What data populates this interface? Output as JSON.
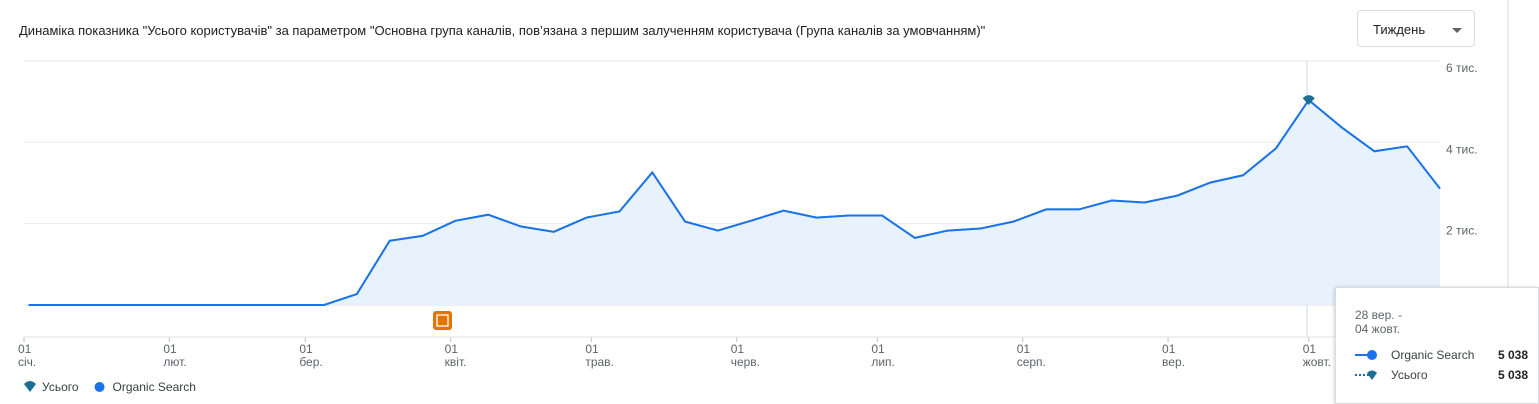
{
  "header": {
    "title": "Динаміка показника \"Усього користувачів\" за параметром \"Основна група каналів, пов’язана з першим залученням користувача (Група каналів за умовчанням)\"",
    "period_selector": "Тиждень"
  },
  "chart_data": {
    "type": "line",
    "x": [
      1,
      8,
      15,
      22,
      29,
      36,
      43,
      50,
      57,
      64,
      71,
      78,
      85,
      92,
      99,
      106,
      113,
      120,
      127,
      134,
      141,
      148,
      155,
      162,
      169,
      176,
      183,
      190,
      197,
      204,
      211,
      218,
      225,
      232,
      239,
      246,
      253,
      260,
      267,
      274,
      281,
      288,
      295,
      302
    ],
    "series": [
      {
        "name": "Усього",
        "color": "#1b6f95",
        "values": [
          0,
          0,
          0,
          0,
          0,
          0,
          0,
          0,
          0,
          0,
          270,
          1580,
          1700,
          2070,
          2220,
          1930,
          1800,
          2150,
          2300,
          3260,
          2050,
          1830,
          2070,
          2320,
          2150,
          2200,
          2200,
          1650,
          1830,
          1880,
          2050,
          2350,
          2350,
          2570,
          2520,
          2690,
          3010,
          3190,
          3850,
          5038,
          4370,
          3780,
          3900,
          2860
        ]
      },
      {
        "name": "Organic Search",
        "color": "#1a73e8",
        "values": [
          0,
          0,
          0,
          0,
          0,
          0,
          0,
          0,
          0,
          0,
          270,
          1580,
          1700,
          2070,
          2220,
          1930,
          1800,
          2150,
          2300,
          3260,
          2050,
          1830,
          2070,
          2320,
          2150,
          2200,
          2200,
          1650,
          1830,
          1880,
          2050,
          2350,
          2350,
          2570,
          2520,
          2690,
          3010,
          3190,
          3850,
          5038,
          4370,
          3780,
          3900,
          2860
        ]
      }
    ],
    "xlim": [
      0,
      302
    ],
    "xticks": [
      {
        "value": 0,
        "label": "01 січ."
      },
      {
        "value": 31,
        "label": "01 лют."
      },
      {
        "value": 60,
        "label": "01 бер."
      },
      {
        "value": 91,
        "label": "01 квіт."
      },
      {
        "value": 121,
        "label": "01 трав."
      },
      {
        "value": 152,
        "label": "01 черв."
      },
      {
        "value": 182,
        "label": "01 лип."
      },
      {
        "value": 213,
        "label": "01 серп."
      },
      {
        "value": 244,
        "label": "01 вер."
      },
      {
        "value": 274,
        "label": "01 жовт."
      }
    ],
    "ylim": [
      0,
      6000
    ],
    "yticks": [
      {
        "value": 2000,
        "label": "2 тис."
      },
      {
        "value": 4000,
        "label": "4 тис."
      },
      {
        "value": 6000,
        "label": "6 тис."
      }
    ],
    "grid": true,
    "legend": "bottom-left",
    "fill_color": "#e8f2fc"
  },
  "tooltip": {
    "date_lines": [
      "28 вер. -",
      "04 жовт."
    ],
    "names": [
      "Organic Search",
      "Усього"
    ],
    "values": [
      5038,
      5038
    ],
    "value_labels": [
      "5 038",
      "5 038"
    ]
  }
}
